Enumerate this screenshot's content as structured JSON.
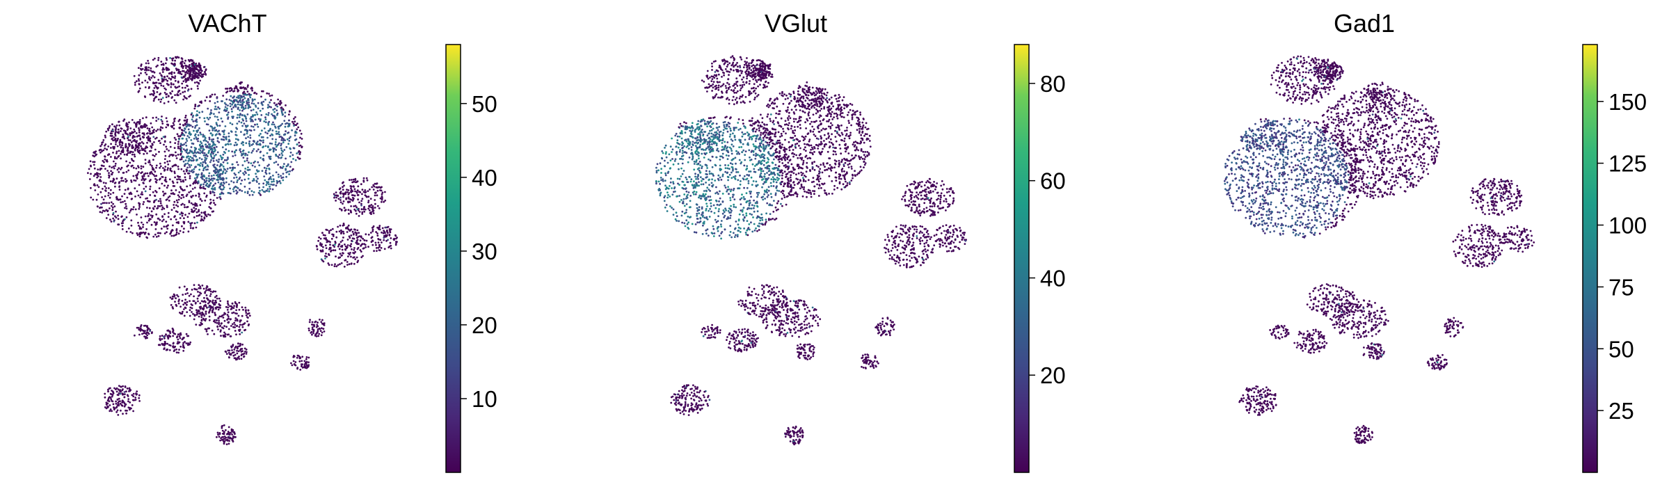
{
  "chart_data": [
    {
      "type": "scatter",
      "title": "VAChT",
      "xlabel": "",
      "ylabel": "",
      "grid": false,
      "colormap": "viridis",
      "colorbar": {
        "min": 0,
        "max": 58,
        "ticks": [
          10,
          20,
          30,
          40,
          50
        ]
      },
      "hotspot": {
        "region": "upper-right central cluster",
        "level": 0.45
      }
    },
    {
      "type": "scatter",
      "title": "VGlut",
      "xlabel": "",
      "ylabel": "",
      "grid": false,
      "colormap": "viridis",
      "colorbar": {
        "min": 0,
        "max": 88,
        "ticks": [
          20,
          40,
          60,
          80
        ]
      },
      "hotspot": {
        "region": "left central cluster",
        "level": 0.55
      }
    },
    {
      "type": "scatter",
      "title": "Gad1",
      "xlabel": "",
      "ylabel": "",
      "grid": false,
      "colormap": "viridis",
      "colorbar": {
        "min": 0,
        "max": 173,
        "ticks": [
          25,
          50,
          75,
          100,
          125,
          150
        ]
      },
      "hotspot": {
        "region": "left central cluster",
        "level": 0.35
      }
    }
  ]
}
